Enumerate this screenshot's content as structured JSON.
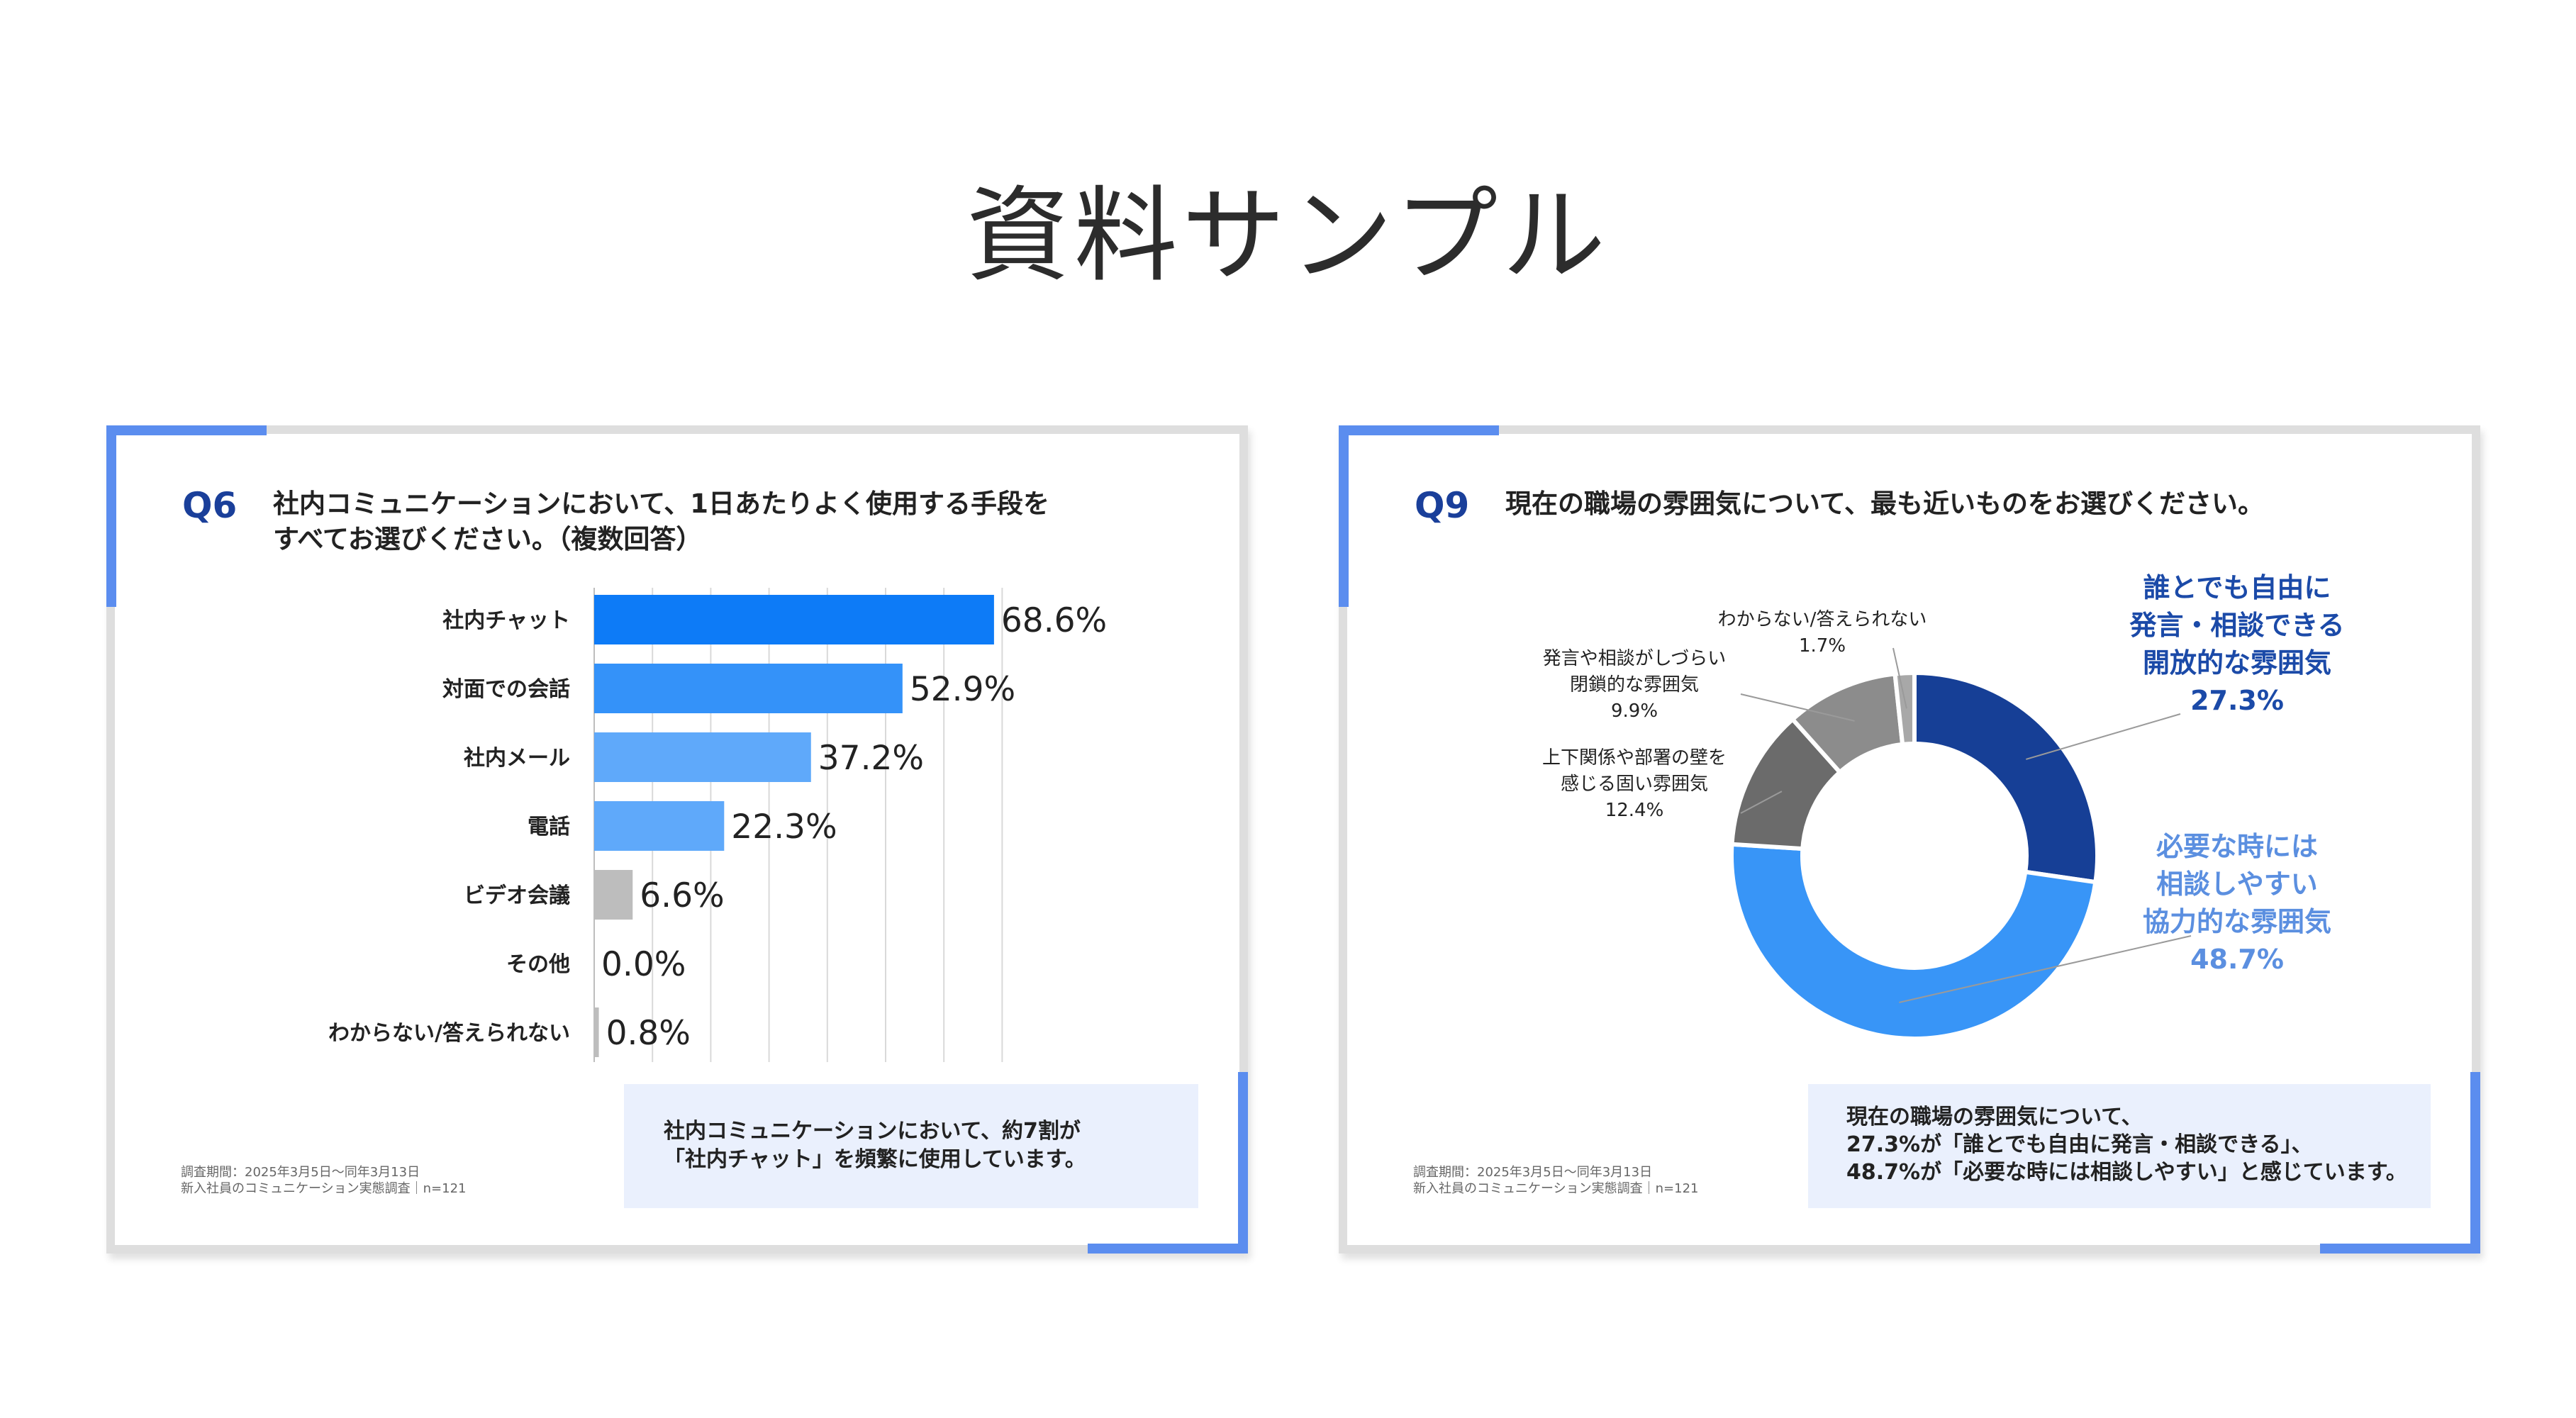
{
  "page_title": "資料サンプル",
  "accent_colors": {
    "card_accent": "#5b8def",
    "bar_top": "#0d7bf7",
    "bar_mid": "#3492f9",
    "bar_light": "#5fa9fa",
    "bar_gray": "#bdbdbd",
    "donut_dark": "#163f96",
    "donut_blue": "#3895f7",
    "donut_gray1": "#6b6b6b",
    "donut_gray2": "#8c8c8c",
    "donut_gray3": "#a8a8a8"
  },
  "left_card": {
    "qnum": "Q6",
    "question_line1": "社内コミュニケーションにおいて、1日あたりよく使用する手段を",
    "question_line2": "すべてお選びください。（複数回答）",
    "summary_line1": "社内コミュニケーションにおいて、約7割が",
    "summary_line2": "「社内チャット」を頻繁に使用しています。",
    "footer_line1": "調査期間：2025年3月5日〜同年3月13日",
    "footer_line2": "新入社員のコミュニケーション実態調査｜n=121"
  },
  "right_card": {
    "qnum": "Q9",
    "question": "現在の職場の雰囲気について、最も近いものをお選びください。",
    "summary_line1": "現在の職場の雰囲気について、",
    "summary_line2": "27.3%が「誰とでも自由に発言・相談できる」、",
    "summary_line3": "48.7%が「必要な時には相談しやすい」と感じています。",
    "footer_line1": "調査期間：2025年3月5日〜同年3月13日",
    "footer_line2": "新入社員のコミュニケーション実態調査｜n=121"
  },
  "chart_data": [
    {
      "type": "bar",
      "orientation": "horizontal",
      "categories": [
        "社内チャット",
        "対面での会話",
        "社内メール",
        "電話",
        "ビデオ会議",
        "その他",
        "わからない/答えられない"
      ],
      "values": [
        68.6,
        52.9,
        37.2,
        22.3,
        6.6,
        0.0,
        0.8
      ],
      "value_labels": [
        "68.6%",
        "52.9%",
        "37.2%",
        "22.3%",
        "6.6%",
        "0.0%",
        "0.8%"
      ],
      "xlim": [
        0,
        70
      ],
      "grid": true
    },
    {
      "type": "pie",
      "style": "donut",
      "slices": [
        {
          "label_lines": [
            "誰とでも自由に",
            "発言・相談できる",
            "開放的な雰囲気"
          ],
          "value": 27.3,
          "value_label": "27.3%",
          "color": "#163f96",
          "label_color": "#1b4aa8"
        },
        {
          "label_lines": [
            "必要な時には",
            "相談しやすい",
            "協力的な雰囲気"
          ],
          "value": 48.7,
          "value_label": "48.7%",
          "color": "#3895f7",
          "label_color": "#5b8fe0"
        },
        {
          "label_lines": [
            "上下関係や部署の壁を",
            "感じる固い雰囲気"
          ],
          "value": 12.4,
          "value_label": "12.4%",
          "color": "#6b6b6b",
          "label_color": "#222222"
        },
        {
          "label_lines": [
            "発言や相談がしづらい",
            "閉鎖的な雰囲気"
          ],
          "value": 9.9,
          "value_label": "9.9%",
          "color": "#8c8c8c",
          "label_color": "#222222"
        },
        {
          "label_lines": [
            "わからない/答えられない"
          ],
          "value": 1.7,
          "value_label": "1.7%",
          "color": "#a8a8a8",
          "label_color": "#222222"
        }
      ]
    }
  ]
}
